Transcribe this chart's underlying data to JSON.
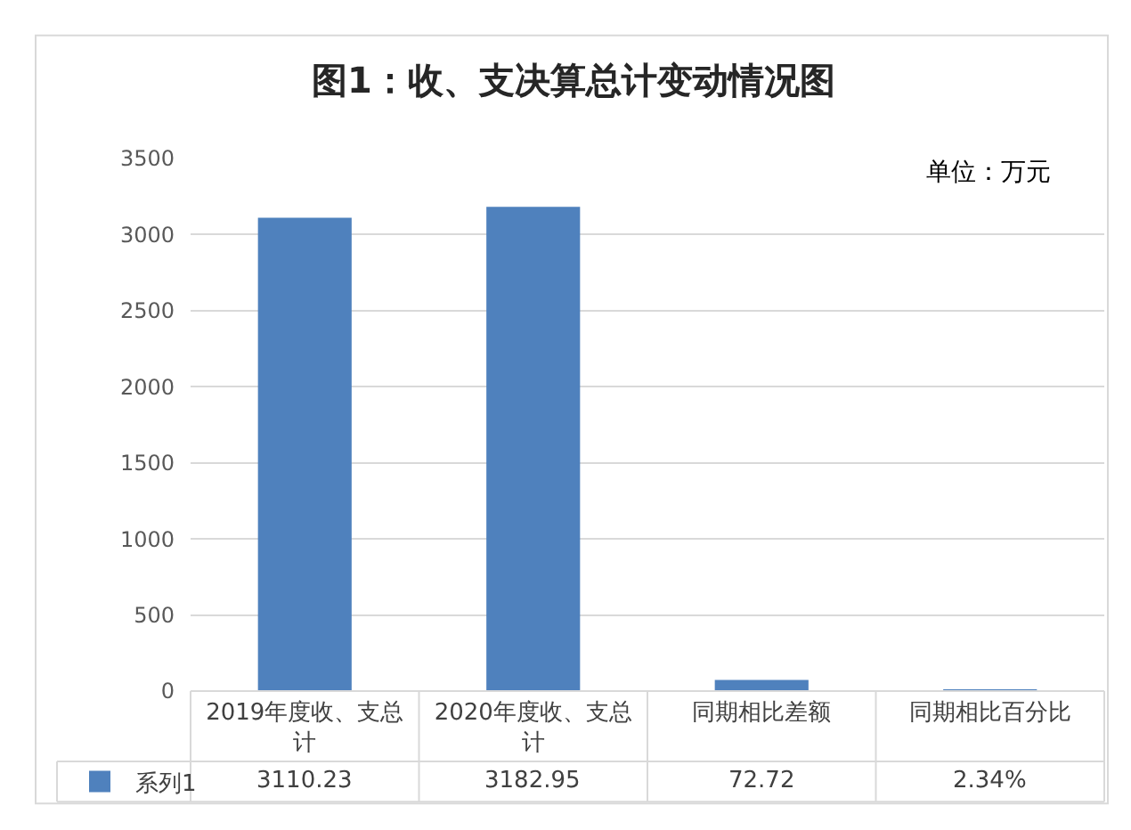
{
  "chart_data": {
    "type": "bar",
    "title": "图1：收、支决算总计变动情况图",
    "annotations": [
      "单位：万元"
    ],
    "categories": [
      "2019年度收、支总计",
      "2020年度收、支总计",
      "同期相比差额",
      "同期相比百分比"
    ],
    "series": [
      {
        "name": "系列1",
        "color": "#4f81bd",
        "values": [
          3110.23,
          3182.95,
          72.72,
          2.34
        ],
        "value_labels": [
          "3110.23",
          "3182.95",
          "72.72",
          "2.34%"
        ]
      }
    ],
    "ylim": [
      0,
      3500
    ],
    "yticks": [
      0,
      500,
      1000,
      1500,
      2000,
      2500,
      3000,
      3500
    ],
    "grid": "y",
    "legend": "bottom left"
  }
}
